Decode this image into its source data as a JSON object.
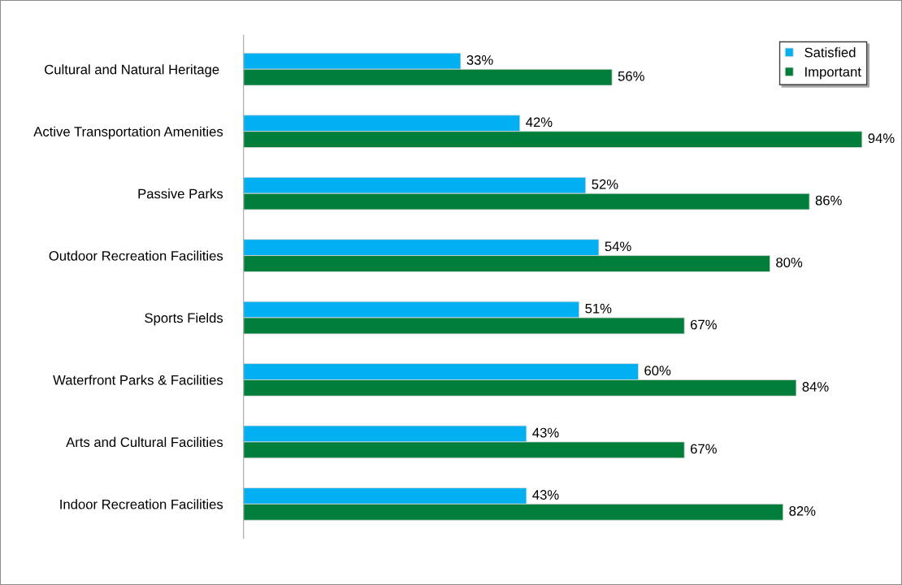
{
  "chart_data": {
    "type": "bar",
    "orientation": "horizontal",
    "categories": [
      "Cultural and Natural Heritage ",
      "Active Transportation Amenities",
      "Passive Parks",
      "Outdoor Recreation Facilities",
      "Sports Fields",
      "Waterfront Parks & Facilities",
      "Arts and Cultural Facilities",
      "Indoor Recreation Facilities"
    ],
    "series": [
      {
        "name": "Satisfied",
        "color": "#00b0f0",
        "values": [
          33,
          42,
          52,
          54,
          51,
          60,
          43,
          43
        ],
        "value_labels": [
          "33%",
          "42%",
          "52%",
          "54%",
          "51%",
          "60%",
          "43%",
          "43%"
        ]
      },
      {
        "name": "Important",
        "color": "#007e3a",
        "values": [
          56,
          94,
          86,
          80,
          67,
          84,
          67,
          82
        ],
        "value_labels": [
          "56%",
          "94%",
          "86%",
          "80%",
          "67%",
          "84%",
          "67%",
          "82%"
        ]
      }
    ],
    "legend": "top right",
    "grid": false,
    "tick_labels": "y"
  }
}
